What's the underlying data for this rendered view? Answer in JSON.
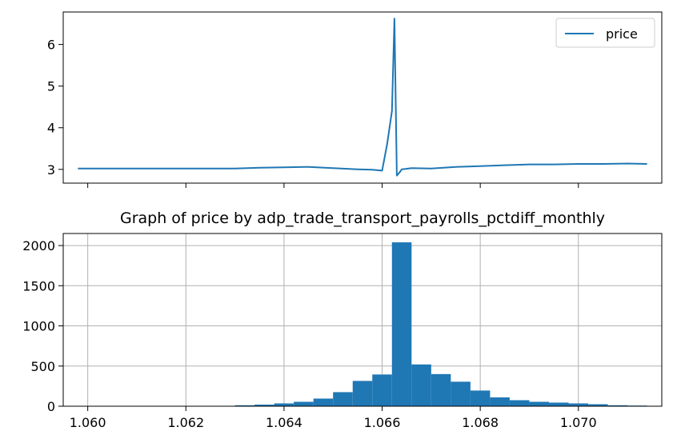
{
  "chart_data": [
    {
      "type": "line",
      "title": "",
      "xlabel": "",
      "ylabel": "",
      "xlim": [
        1.0595,
        1.0717
      ],
      "ylim": [
        2.67,
        6.78
      ],
      "yticks": [
        3,
        4,
        5,
        6
      ],
      "x_tick_positions": [
        1.06,
        1.062,
        1.064,
        1.066,
        1.068,
        1.07
      ],
      "x_tick_labels_shown": false,
      "grid": false,
      "legend_position": "top-right",
      "series": [
        {
          "name": "price",
          "color": "#1f77b4",
          "x": [
            1.0598,
            1.061,
            1.062,
            1.063,
            1.0635,
            1.064,
            1.0645,
            1.065,
            1.0655,
            1.0658,
            1.066,
            1.0661,
            1.0662,
            1.06625,
            1.0663,
            1.06635,
            1.0664,
            1.0666,
            1.067,
            1.0675,
            1.068,
            1.0685,
            1.069,
            1.0695,
            1.07,
            1.0705,
            1.071,
            1.0714
          ],
          "y": [
            3.02,
            3.02,
            3.02,
            3.02,
            3.04,
            3.05,
            3.06,
            3.03,
            3.0,
            2.99,
            2.97,
            3.6,
            4.4,
            6.62,
            2.85,
            2.92,
            3.0,
            3.03,
            3.02,
            3.06,
            3.08,
            3.1,
            3.12,
            3.12,
            3.13,
            3.13,
            3.14,
            3.13
          ]
        }
      ]
    },
    {
      "type": "bar",
      "title": "Graph of price by adp_trade_transport_payrolls_pctdiff_monthly",
      "xlabel": "",
      "ylabel": "",
      "xlim": [
        1.0595,
        1.0717
      ],
      "ylim": [
        0,
        2150
      ],
      "xticks": [
        "1.060",
        "1.062",
        "1.064",
        "1.066",
        "1.068",
        "1.070"
      ],
      "yticks": [
        "0",
        "500",
        "1000",
        "1500",
        "2000"
      ],
      "grid": true,
      "color": "#1f77b4",
      "bin_edges": [
        1.0598,
        1.0602,
        1.0606,
        1.061,
        1.0614,
        1.0618,
        1.0622,
        1.0626,
        1.063,
        1.0634,
        1.0638,
        1.0642,
        1.0646,
        1.065,
        1.0654,
        1.0658,
        1.0662,
        1.0666,
        1.067,
        1.0674,
        1.0678,
        1.0682,
        1.0686,
        1.069,
        1.0694,
        1.0698,
        1.0702,
        1.0706,
        1.071,
        1.0714
      ],
      "counts": [
        1,
        1,
        1,
        1,
        1,
        2,
        2,
        5,
        12,
        20,
        35,
        55,
        95,
        175,
        315,
        395,
        2040,
        520,
        400,
        305,
        195,
        110,
        75,
        55,
        45,
        35,
        25,
        12,
        8
      ]
    }
  ]
}
